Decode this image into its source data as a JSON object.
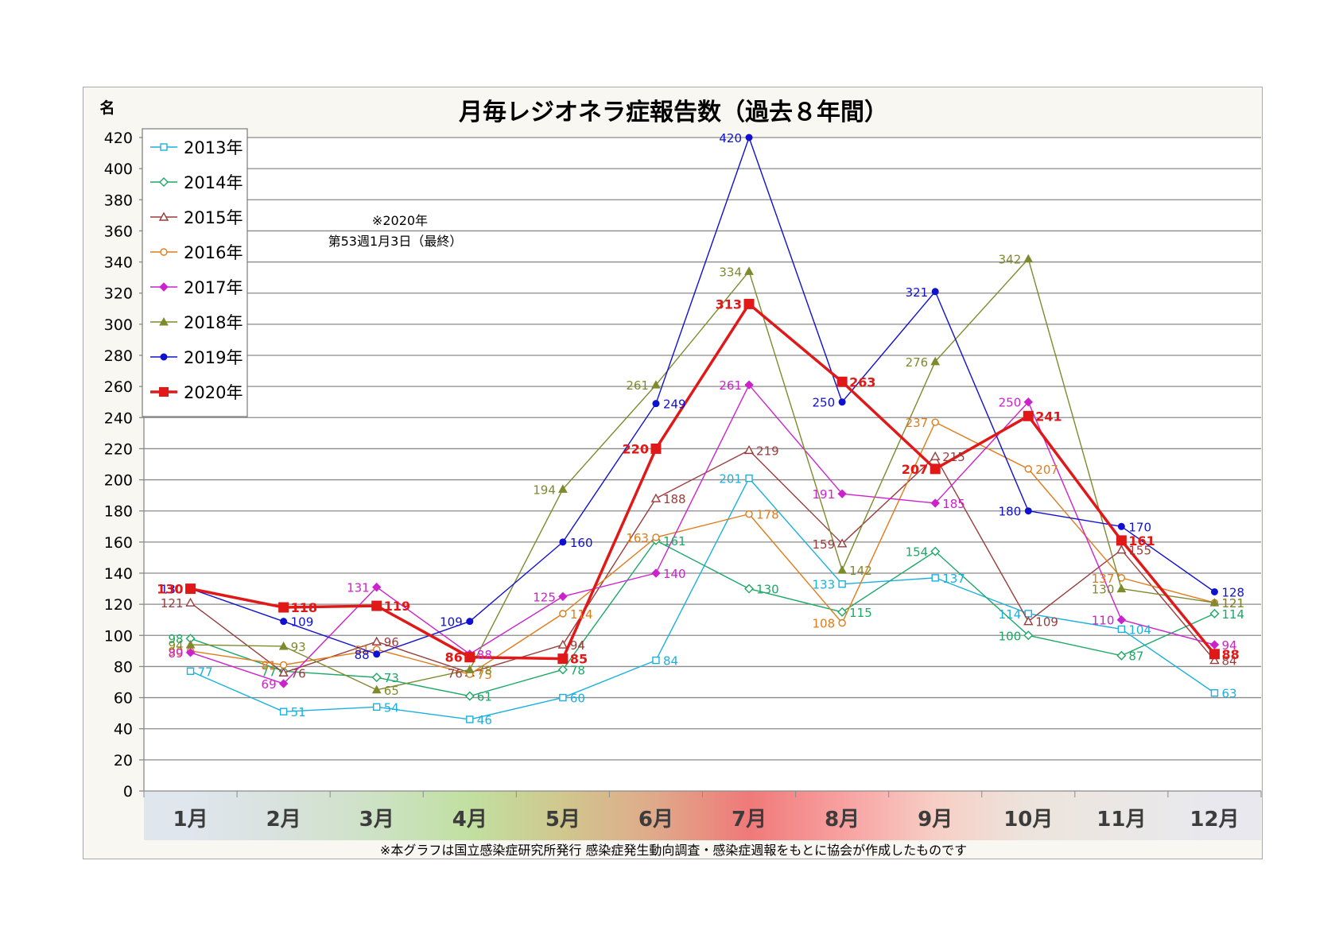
{
  "chart_data": {
    "type": "line",
    "title": "月毎レジオネラ症報告数（過去８年間）",
    "ylabel": "名",
    "ylim": [
      0,
      420
    ],
    "yticks": [
      0,
      20,
      40,
      60,
      80,
      100,
      120,
      140,
      160,
      180,
      200,
      220,
      240,
      260,
      280,
      300,
      320,
      340,
      360,
      380,
      400,
      420
    ],
    "categories": [
      "1月",
      "2月",
      "3月",
      "4月",
      "5月",
      "6月",
      "7月",
      "8月",
      "9月",
      "10月",
      "11月",
      "12月"
    ],
    "grid": true,
    "legend_position": "top-left",
    "note": "※2020年\n第53週1月3日（最終）",
    "footer": "※本グラフは国立感染症研究所発行 感染症発生動向調査・感染症週報をもとに協会が作成したものです",
    "month_band_colors": [
      "#dfe6ee",
      "#d8e2dc",
      "#cde2c4",
      "#c1e0a0",
      "#d0c78e",
      "#e0a98a",
      "#f07979",
      "#f8a0a0",
      "#f7cec5",
      "#ece4dc",
      "#ebe7e5",
      "#e8e8ee"
    ],
    "series": [
      {
        "name": "2013年",
        "color": "#1ab0e0",
        "marker": "square-open",
        "values": [
          77,
          51,
          54,
          46,
          60,
          84,
          201,
          133,
          137,
          114,
          104,
          63
        ]
      },
      {
        "name": "2014年",
        "color": "#1ca866",
        "marker": "diamond-open",
        "values": [
          98,
          77,
          73,
          61,
          78,
          161,
          130,
          115,
          154,
          100,
          87,
          114
        ]
      },
      {
        "name": "2015年",
        "color": "#9a3c3c",
        "marker": "triangle-open",
        "values": [
          121,
          76,
          96,
          76,
          94,
          188,
          219,
          159,
          215,
          109,
          155,
          84
        ]
      },
      {
        "name": "2016年",
        "color": "#e07b1a",
        "marker": "circle-open",
        "values": [
          90,
          81,
          91,
          75,
          114,
          163,
          178,
          108,
          237,
          207,
          137,
          121
        ]
      },
      {
        "name": "2017年",
        "color": "#cc22cc",
        "marker": "diamond",
        "values": [
          89,
          69,
          131,
          88,
          125,
          140,
          261,
          191,
          185,
          250,
          110,
          94
        ]
      },
      {
        "name": "2018年",
        "color": "#7e8a2c",
        "marker": "triangle",
        "values": [
          94,
          93,
          65,
          78,
          194,
          261,
          334,
          142,
          276,
          342,
          130,
          121
        ]
      },
      {
        "name": "2019年",
        "color": "#1010d0",
        "marker": "circle",
        "values": [
          130,
          109,
          88,
          109,
          160,
          249,
          420,
          250,
          321,
          180,
          170,
          128
        ]
      },
      {
        "name": "2020年",
        "color": "#e01818",
        "marker": "square",
        "bold": true,
        "values": [
          130,
          118,
          119,
          86,
          85,
          220,
          313,
          263,
          207,
          241,
          161,
          88
        ]
      }
    ]
  }
}
